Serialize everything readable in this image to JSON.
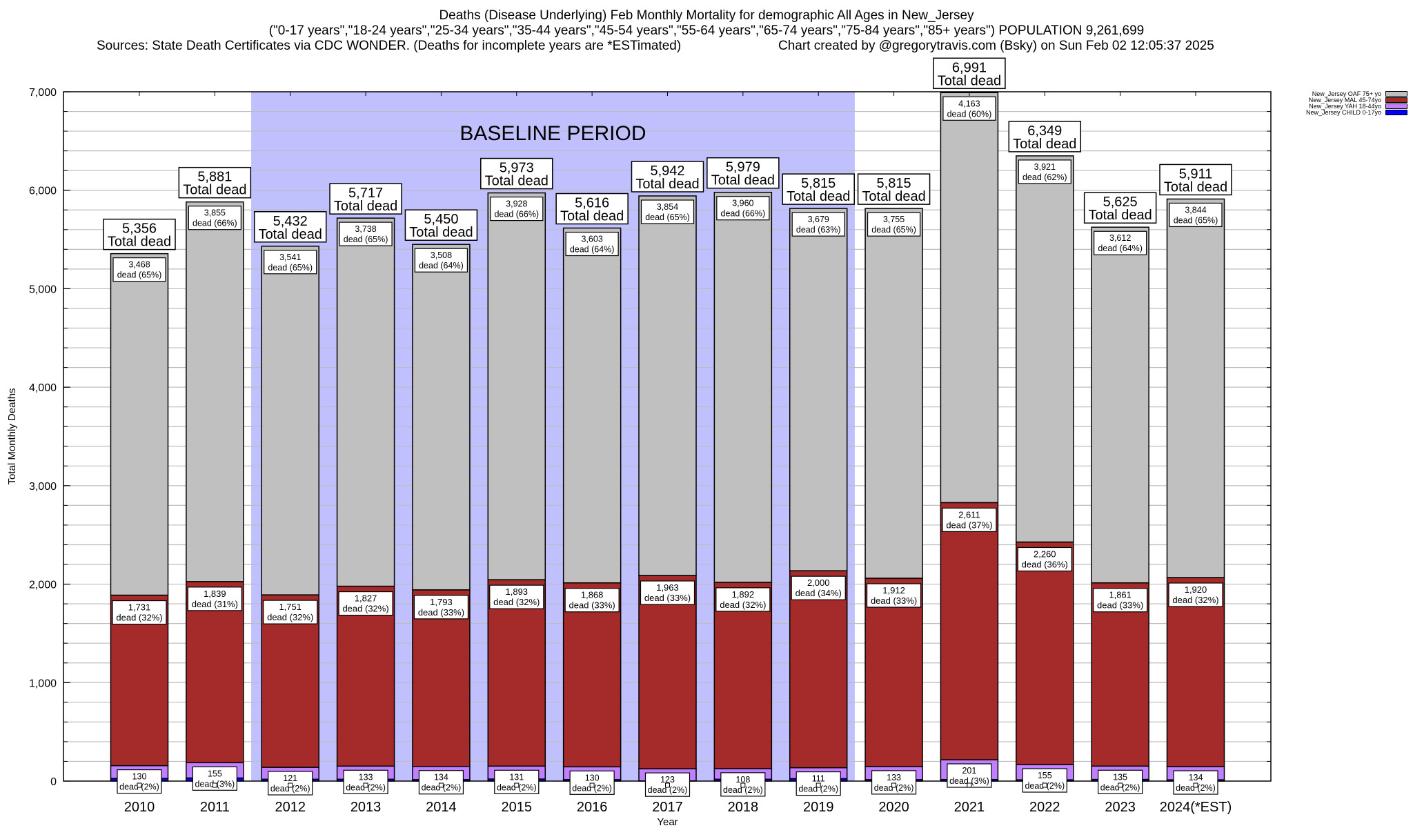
{
  "chart_data": {
    "type": "bar",
    "stacked": true,
    "title": "Deaths (Disease Underlying) Feb Monthly Mortality for demographic All Ages in New_Jersey",
    "subtitle": "(\"0-17 years\",\"18-24 years\",\"25-34 years\",\"35-44 years\",\"45-54 years\",\"55-64 years\",\"65-74 years\",\"75-84 years\",\"85+ years\") POPULATION 9,261,699",
    "sources": "Sources: State Death Certificates via CDC WONDER. (Deaths for incomplete years are *ESTimated)",
    "credit": "Chart created by @gregorytravis.com (Bsky) on Sun Feb 02 12:05:37 2025",
    "xlabel": "Year",
    "ylabel": "Total Monthly Deaths",
    "ylim": [
      0,
      7000
    ],
    "yticks": [
      0,
      1000,
      2000,
      3000,
      4000,
      5000,
      6000,
      7000
    ],
    "ytick_labels": [
      "0",
      "1,000",
      "2,000",
      "3,000",
      "4,000",
      "5,000",
      "6,000",
      "7,000"
    ],
    "minor_grid_step": 200,
    "grid": true,
    "legend_position": "top-right",
    "categories": [
      "2010",
      "2011",
      "2012",
      "2013",
      "2014",
      "2015",
      "2016",
      "2017",
      "2018",
      "2019",
      "2020",
      "2021",
      "2022",
      "2023",
      "2024(*EST)"
    ],
    "series": [
      {
        "name": "New_Jersey CHILD 0-17yo",
        "color": "#0000ff",
        "values": [
          27,
          32,
          19,
          19,
          15,
          21,
          15,
          2,
          19,
          25,
          15,
          16,
          13,
          17,
          13
        ]
      },
      {
        "name": "New_Jersey YAH 18-44yo",
        "color": "#c080ff",
        "values": [
          130,
          155,
          121,
          133,
          134,
          131,
          130,
          123,
          108,
          111,
          133,
          201,
          155,
          135,
          134
        ],
        "pct": [
          "2%",
          "3%",
          "2%",
          "2%",
          "2%",
          "2%",
          "2%",
          "2%",
          "2%",
          "2%",
          "2%",
          "3%",
          "2%",
          "2%",
          "2%"
        ]
      },
      {
        "name": "New_Jersey MAL 45-74yo",
        "color": "#a52a2a",
        "values": [
          1731,
          1839,
          1751,
          1827,
          1793,
          1893,
          1868,
          1963,
          1892,
          2000,
          1912,
          2611,
          2260,
          1861,
          1920
        ],
        "pct": [
          "32%",
          "31%",
          "32%",
          "32%",
          "33%",
          "32%",
          "33%",
          "33%",
          "32%",
          "34%",
          "33%",
          "37%",
          "36%",
          "33%",
          "32%"
        ]
      },
      {
        "name": "New_Jersey OAF 75+ yo",
        "color": "#c0c0c0",
        "values": [
          3468,
          3855,
          3541,
          3738,
          3508,
          3928,
          3603,
          3854,
          3960,
          3679,
          3755,
          4163,
          3921,
          3612,
          3844
        ],
        "pct": [
          "65%",
          "66%",
          "65%",
          "65%",
          "64%",
          "66%",
          "64%",
          "65%",
          "66%",
          "63%",
          "65%",
          "60%",
          "62%",
          "64%",
          "65%"
        ]
      }
    ],
    "totals": [
      5356,
      5881,
      5432,
      5717,
      5450,
      5973,
      5616,
      5942,
      5979,
      5815,
      5815,
      6991,
      6349,
      5625,
      5911
    ],
    "total_suffix": "Total dead",
    "segment_label_prefix": "dead",
    "annotation": {
      "text": "BASELINE PERIOD",
      "from_category": "2012",
      "to_category": "2019",
      "color": "#c0c0ff"
    }
  },
  "legend": {
    "items": [
      {
        "label": "New_Jersey OAF 75+ yo",
        "color": "#c0c0c0"
      },
      {
        "label": "New_Jersey MAL 45-74yo",
        "color": "#a52a2a"
      },
      {
        "label": "New_Jersey YAH 18-44yo",
        "color": "#c080ff"
      },
      {
        "label": "New_Jersey CHILD 0-17yo",
        "color": "#0000ff"
      }
    ]
  }
}
